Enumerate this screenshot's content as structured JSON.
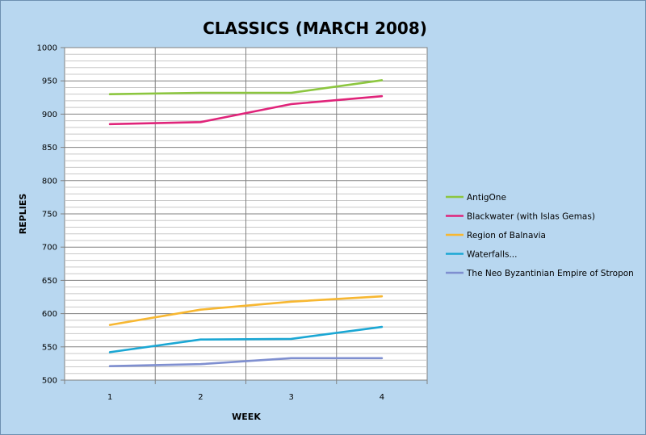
{
  "chart_data": {
    "type": "line",
    "title": "CLASSICS (MARCH 2008)",
    "xlabel": "WEEK",
    "ylabel": "REPLIES",
    "x": [
      1,
      2,
      3,
      4
    ],
    "x_tick_labels": [
      "1",
      "2",
      "3",
      "4"
    ],
    "ylim": [
      500,
      1000
    ],
    "y_ticks": [
      500,
      550,
      600,
      650,
      700,
      750,
      800,
      850,
      900,
      950,
      1000
    ],
    "y_tick_labels": [
      "500",
      "550",
      "600",
      "650",
      "700",
      "750",
      "800",
      "850",
      "900",
      "950",
      "1000"
    ],
    "y_minor_step": 10,
    "grid": true,
    "legend_position": "right",
    "series": [
      {
        "name": "AntigOne",
        "color": "#8cc63f",
        "values": [
          930,
          932,
          932,
          951
        ]
      },
      {
        "name": "Blackwater (with Islas Gemas)",
        "color": "#e0247a",
        "values": [
          885,
          888,
          915,
          927
        ]
      },
      {
        "name": "Region of Balnavia",
        "color": "#f7b731",
        "values": [
          583,
          606,
          618,
          626
        ]
      },
      {
        "name": "Waterfalls...",
        "color": "#1ba7d4",
        "values": [
          542,
          561,
          562,
          580
        ]
      },
      {
        "name": "The Neo Byzantinian Empire of Stropon",
        "color": "#7f8fd0",
        "values": [
          521,
          524,
          533,
          533
        ]
      }
    ],
    "background_color": "#b8d7f0",
    "plot_background_color": "#ffffff"
  }
}
